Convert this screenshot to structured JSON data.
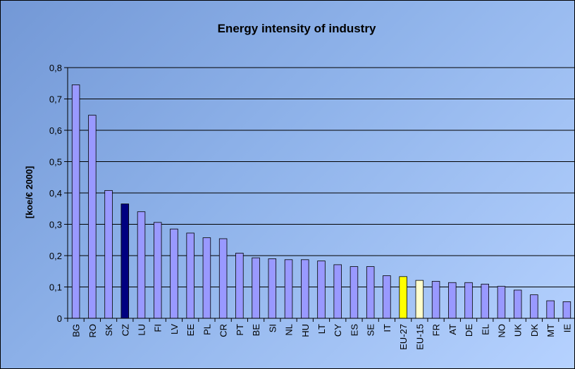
{
  "chart_data": {
    "type": "bar",
    "title": "Energy intensity of industry",
    "xlabel": "",
    "ylabel": "[koe/€ 2000]",
    "ylim": [
      0,
      0.8
    ],
    "yticks": [
      "0",
      "0,1",
      "0,2",
      "0,3",
      "0,4",
      "0,5",
      "0,6",
      "0,7",
      "0,8"
    ],
    "grid": true,
    "categories": [
      "BG",
      "RO",
      "SK",
      "CZ",
      "LU",
      "FI",
      "LV",
      "EE",
      "PL",
      "CR",
      "PT",
      "BE",
      "SI",
      "NL",
      "HU",
      "LT",
      "CY",
      "ES",
      "SE",
      "IT",
      "EU-27",
      "EU-15",
      "FR",
      "AT",
      "DE",
      "EL",
      "NO",
      "UK",
      "DK",
      "MT",
      "IE"
    ],
    "values": [
      0.745,
      0.648,
      0.408,
      0.365,
      0.34,
      0.306,
      0.285,
      0.272,
      0.257,
      0.254,
      0.208,
      0.193,
      0.19,
      0.187,
      0.187,
      0.183,
      0.171,
      0.165,
      0.165,
      0.136,
      0.133,
      0.121,
      0.118,
      0.114,
      0.114,
      0.109,
      0.102,
      0.09,
      0.075,
      0.056,
      0.053
    ],
    "colors": {
      "default": "#9999ff",
      "highlight": "#000080",
      "eu27": "#ffff00",
      "eu15": "#ffffcc",
      "background_top": "#7398d6",
      "background_bottom": "#b6d2ff",
      "bar_outline": "#000000",
      "gridline": "#000000"
    },
    "bar_colors": {
      "CZ": "#000080",
      "EU-27": "#ffff00",
      "EU-15": "#ffffcc"
    }
  }
}
